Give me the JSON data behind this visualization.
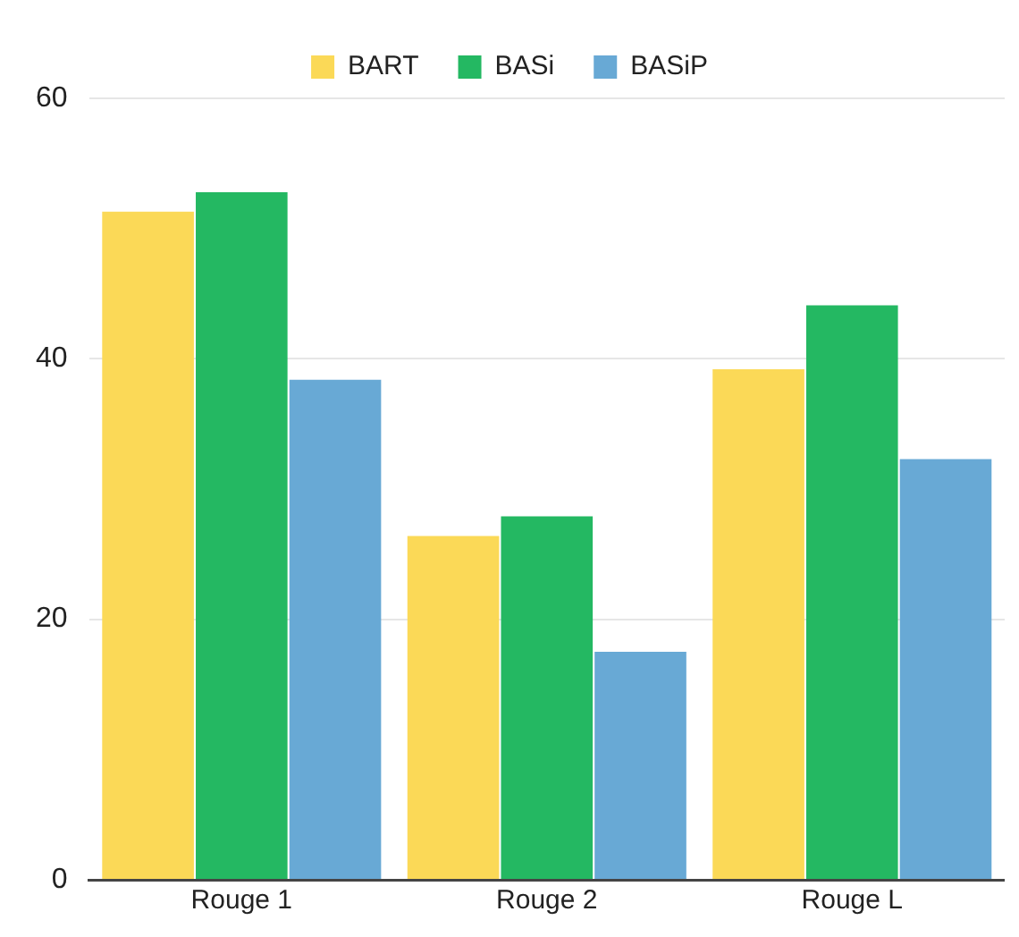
{
  "chart_data": {
    "type": "bar",
    "categories": [
      "Rouge 1",
      "Rouge 2",
      "Rouge L"
    ],
    "series": [
      {
        "name": "BART",
        "color": "#fbd957",
        "values": [
          51.3,
          26.4,
          39.2
        ]
      },
      {
        "name": "BASi",
        "color": "#24b862",
        "values": [
          52.8,
          27.9,
          44.1
        ]
      },
      {
        "name": "BASiP",
        "color": "#68a9d5",
        "values": [
          38.4,
          17.5,
          32.3
        ]
      }
    ],
    "ylim": [
      0,
      60
    ],
    "yticks": [
      0,
      20,
      40,
      60
    ],
    "grid": "y",
    "legend": "top"
  }
}
